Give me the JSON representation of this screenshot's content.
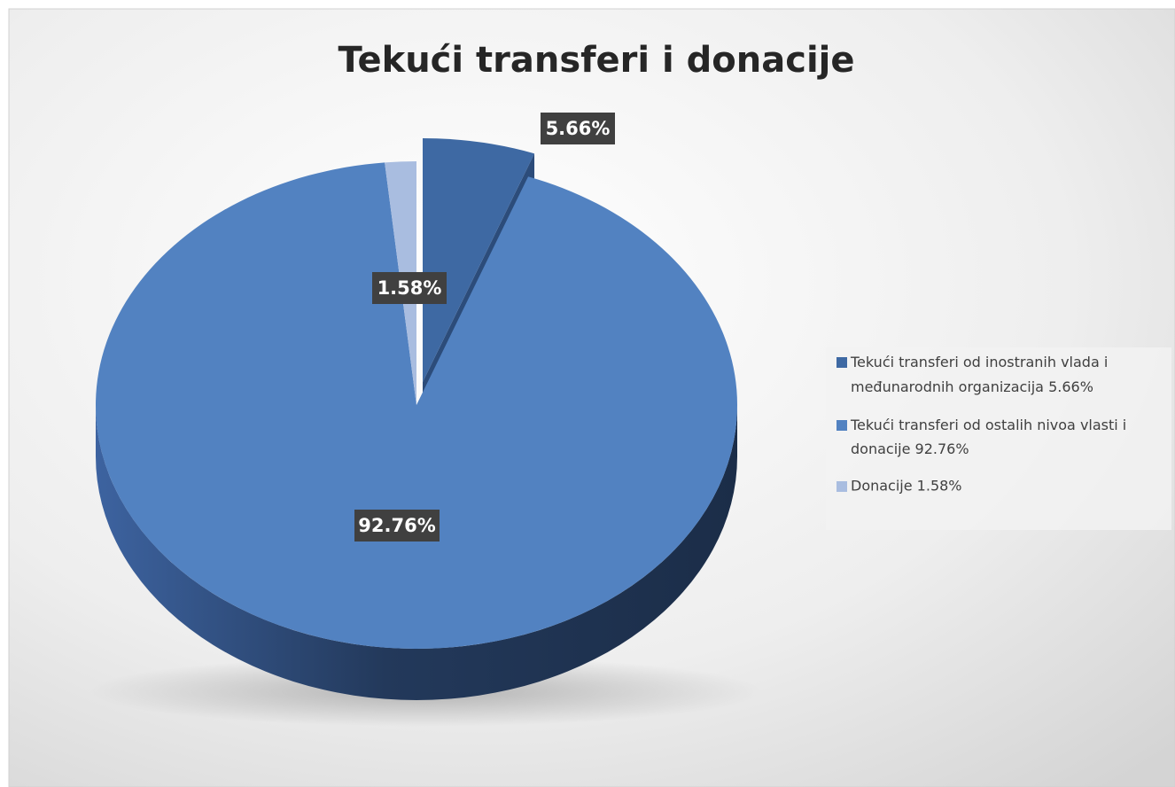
{
  "chart_data": {
    "type": "pie",
    "title": "Tekući transferi i donacije",
    "categories": [
      "Tekući transferi od inostranih vlada i međunarodnih organizacija  5.66%",
      "Tekući transferi od ostalih nivoa vlasti i donacije 92.76%",
      "Donacije 1.58%"
    ],
    "values": [
      5.66,
      92.76,
      1.58
    ],
    "value_labels": [
      "5.66%",
      "92.76%",
      "1.58%"
    ],
    "colors": [
      "#3e69a3",
      "#5282c1",
      "#a9bde0"
    ],
    "legend": "right"
  }
}
